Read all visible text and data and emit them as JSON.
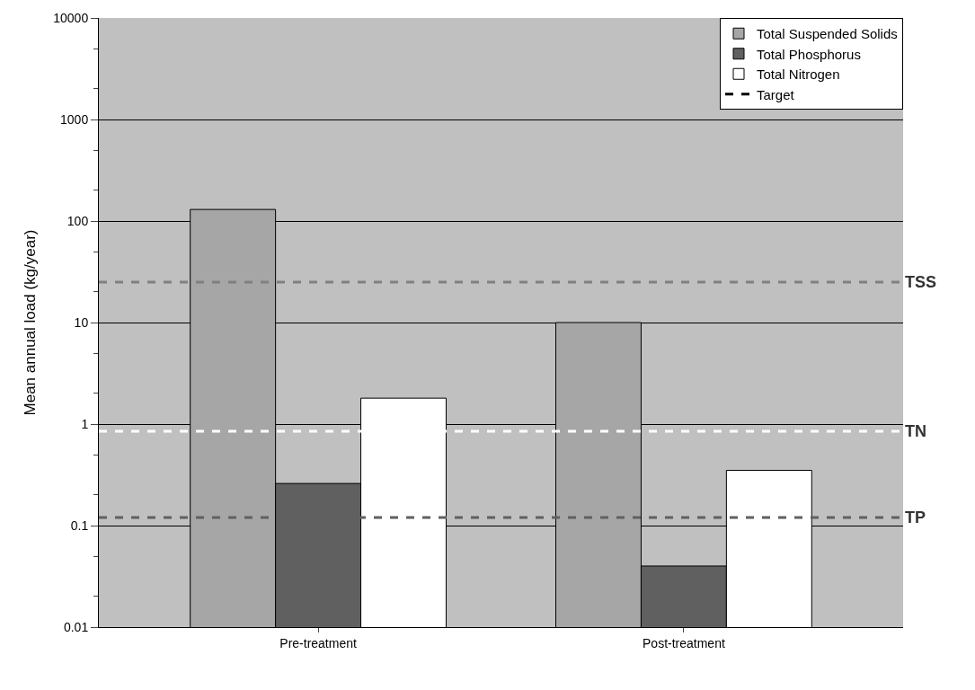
{
  "chart_data": {
    "type": "bar",
    "ylabel": "Mean annual load (kg/year)",
    "categories": [
      "Pre-treatment",
      "Post-treatment"
    ],
    "series": [
      {
        "name": "Total Suspended Solids",
        "color": "#a6a6a6",
        "values": [
          130,
          10
        ]
      },
      {
        "name": "Total Phosphorus",
        "color": "#606060",
        "values": [
          0.26,
          0.04
        ]
      },
      {
        "name": "Total Nitrogen",
        "color": "#ffffff",
        "values": [
          1.8,
          0.35
        ]
      },
      {
        "name": "Target",
        "type": "line",
        "color": "#000000",
        "line_style": "dashed",
        "values": [
          null,
          null
        ]
      }
    ],
    "ref_lines": [
      {
        "axis": "y",
        "value": 25,
        "label": "TSS",
        "color": "#808080",
        "line_style": "dashed"
      },
      {
        "axis": "y",
        "value": 0.85,
        "label": "TN",
        "color": "#ffffff",
        "line_style": "dashed"
      },
      {
        "axis": "y",
        "value": 0.12,
        "label": "TP",
        "color": "#606060",
        "line_style": "dashed"
      }
    ],
    "log": "y",
    "ylim": [
      0.01,
      10000
    ],
    "yticks": [
      0.01,
      0.1,
      1,
      10,
      100,
      1000,
      10000
    ],
    "grid": "y",
    "legend": "top right"
  }
}
